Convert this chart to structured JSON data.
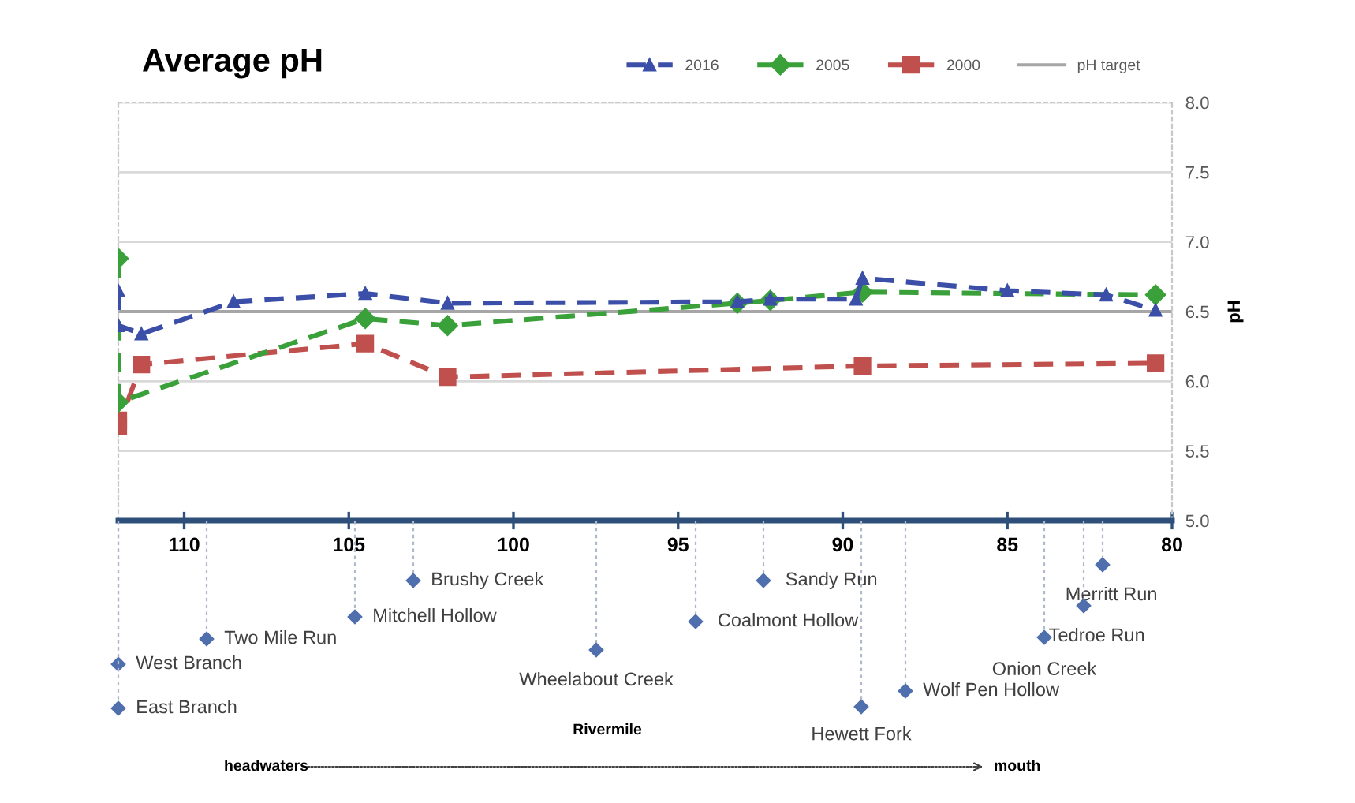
{
  "chart_data": {
    "type": "line",
    "title": "Average pH",
    "ylabel": "pH",
    "xlim": [
      112,
      80
    ],
    "xticks": [
      110,
      105,
      100,
      95,
      90,
      85,
      80
    ],
    "ylim": [
      5.0,
      8.0
    ],
    "yticks": [
      {
        "value": 5.0,
        "label": "5.0"
      },
      {
        "value": 5.5,
        "label": "5.5"
      },
      {
        "value": 6.0,
        "label": "6.0"
      },
      {
        "value": 6.5,
        "label": "6.5"
      },
      {
        "value": 7.0,
        "label": "7.0"
      },
      {
        "value": 7.5,
        "label": "7.5"
      },
      {
        "value": 8.0,
        "label": "8.0"
      }
    ],
    "grid": "y",
    "legend": "top right",
    "line_style": "dashed",
    "series": [
      {
        "name": "2016",
        "color": "#3b4fa8",
        "marker": "triangle",
        "x": [
          112,
          112,
          111.3,
          108.5,
          104.5,
          102,
          93.2,
          92.2,
          89.6,
          89.4,
          85,
          82,
          80.5
        ],
        "values": [
          6.65,
          6.4,
          6.34,
          6.57,
          6.63,
          6.56,
          6.57,
          6.59,
          6.59,
          6.74,
          6.65,
          6.62,
          6.51
        ]
      },
      {
        "name": "2005",
        "color": "#3aa13a",
        "marker": "diamond",
        "x": [
          112,
          112,
          104.5,
          102,
          93.2,
          92.2,
          89.4,
          80.5
        ],
        "values": [
          6.88,
          5.85,
          6.45,
          6.4,
          6.56,
          6.58,
          6.64,
          6.62
        ]
      },
      {
        "name": "2000",
        "color": "#c0504d",
        "marker": "square",
        "x": [
          112,
          112,
          111.3,
          104.5,
          102,
          89.4,
          80.5
        ],
        "values": [
          5.72,
          5.68,
          6.12,
          6.27,
          6.03,
          6.11,
          6.13
        ]
      }
    ],
    "ref_lines": [
      {
        "axis": "y",
        "value": 6.5,
        "label": "pH target",
        "color": "#a6a6a6",
        "line_style": "solid"
      }
    ],
    "annotations": [
      "West Branch",
      "East Branch",
      "Two Mile Run",
      "Mitchell Hollow",
      "Brushy Creek",
      "Wheelabout Creek",
      "Coalmont Hollow",
      "Sandy Run",
      "Hewett Fork",
      "Wolf Pen Hollow",
      "Onion Creek",
      "Tedroe Run",
      "Merritt Run",
      "Rivermile",
      "headwaters",
      "mouth"
    ]
  }
}
